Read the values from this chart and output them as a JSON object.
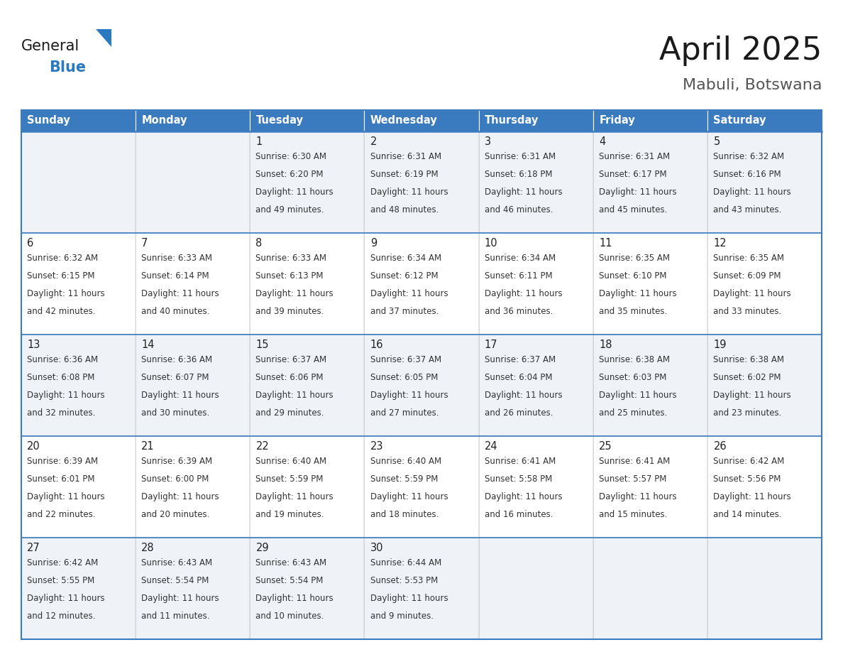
{
  "title": "April 2025",
  "subtitle": "Mabuli, Botswana",
  "header_bg": "#3a7abf",
  "header_text": "#ffffff",
  "row_bg_odd": "#eff3f7",
  "row_bg_even": "#ffffff",
  "border_color": "#3a7abf",
  "day_headers": [
    "Sunday",
    "Monday",
    "Tuesday",
    "Wednesday",
    "Thursday",
    "Friday",
    "Saturday"
  ],
  "days": [
    {
      "day": null,
      "sunrise": null,
      "sunset": null,
      "daylight_line1": null,
      "daylight_line2": null
    },
    {
      "day": null,
      "sunrise": null,
      "sunset": null,
      "daylight_line1": null,
      "daylight_line2": null
    },
    {
      "day": "1",
      "sunrise": "6:30 AM",
      "sunset": "6:20 PM",
      "daylight_line1": "11 hours",
      "daylight_line2": "and 49 minutes."
    },
    {
      "day": "2",
      "sunrise": "6:31 AM",
      "sunset": "6:19 PM",
      "daylight_line1": "11 hours",
      "daylight_line2": "and 48 minutes."
    },
    {
      "day": "3",
      "sunrise": "6:31 AM",
      "sunset": "6:18 PM",
      "daylight_line1": "11 hours",
      "daylight_line2": "and 46 minutes."
    },
    {
      "day": "4",
      "sunrise": "6:31 AM",
      "sunset": "6:17 PM",
      "daylight_line1": "11 hours",
      "daylight_line2": "and 45 minutes."
    },
    {
      "day": "5",
      "sunrise": "6:32 AM",
      "sunset": "6:16 PM",
      "daylight_line1": "11 hours",
      "daylight_line2": "and 43 minutes."
    },
    {
      "day": "6",
      "sunrise": "6:32 AM",
      "sunset": "6:15 PM",
      "daylight_line1": "11 hours",
      "daylight_line2": "and 42 minutes."
    },
    {
      "day": "7",
      "sunrise": "6:33 AM",
      "sunset": "6:14 PM",
      "daylight_line1": "11 hours",
      "daylight_line2": "and 40 minutes."
    },
    {
      "day": "8",
      "sunrise": "6:33 AM",
      "sunset": "6:13 PM",
      "daylight_line1": "11 hours",
      "daylight_line2": "and 39 minutes."
    },
    {
      "day": "9",
      "sunrise": "6:34 AM",
      "sunset": "6:12 PM",
      "daylight_line1": "11 hours",
      "daylight_line2": "and 37 minutes."
    },
    {
      "day": "10",
      "sunrise": "6:34 AM",
      "sunset": "6:11 PM",
      "daylight_line1": "11 hours",
      "daylight_line2": "and 36 minutes."
    },
    {
      "day": "11",
      "sunrise": "6:35 AM",
      "sunset": "6:10 PM",
      "daylight_line1": "11 hours",
      "daylight_line2": "and 35 minutes."
    },
    {
      "day": "12",
      "sunrise": "6:35 AM",
      "sunset": "6:09 PM",
      "daylight_line1": "11 hours",
      "daylight_line2": "and 33 minutes."
    },
    {
      "day": "13",
      "sunrise": "6:36 AM",
      "sunset": "6:08 PM",
      "daylight_line1": "11 hours",
      "daylight_line2": "and 32 minutes."
    },
    {
      "day": "14",
      "sunrise": "6:36 AM",
      "sunset": "6:07 PM",
      "daylight_line1": "11 hours",
      "daylight_line2": "and 30 minutes."
    },
    {
      "day": "15",
      "sunrise": "6:37 AM",
      "sunset": "6:06 PM",
      "daylight_line1": "11 hours",
      "daylight_line2": "and 29 minutes."
    },
    {
      "day": "16",
      "sunrise": "6:37 AM",
      "sunset": "6:05 PM",
      "daylight_line1": "11 hours",
      "daylight_line2": "and 27 minutes."
    },
    {
      "day": "17",
      "sunrise": "6:37 AM",
      "sunset": "6:04 PM",
      "daylight_line1": "11 hours",
      "daylight_line2": "and 26 minutes."
    },
    {
      "day": "18",
      "sunrise": "6:38 AM",
      "sunset": "6:03 PM",
      "daylight_line1": "11 hours",
      "daylight_line2": "and 25 minutes."
    },
    {
      "day": "19",
      "sunrise": "6:38 AM",
      "sunset": "6:02 PM",
      "daylight_line1": "11 hours",
      "daylight_line2": "and 23 minutes."
    },
    {
      "day": "20",
      "sunrise": "6:39 AM",
      "sunset": "6:01 PM",
      "daylight_line1": "11 hours",
      "daylight_line2": "and 22 minutes."
    },
    {
      "day": "21",
      "sunrise": "6:39 AM",
      "sunset": "6:00 PM",
      "daylight_line1": "11 hours",
      "daylight_line2": "and 20 minutes."
    },
    {
      "day": "22",
      "sunrise": "6:40 AM",
      "sunset": "5:59 PM",
      "daylight_line1": "11 hours",
      "daylight_line2": "and 19 minutes."
    },
    {
      "day": "23",
      "sunrise": "6:40 AM",
      "sunset": "5:59 PM",
      "daylight_line1": "11 hours",
      "daylight_line2": "and 18 minutes."
    },
    {
      "day": "24",
      "sunrise": "6:41 AM",
      "sunset": "5:58 PM",
      "daylight_line1": "11 hours",
      "daylight_line2": "and 16 minutes."
    },
    {
      "day": "25",
      "sunrise": "6:41 AM",
      "sunset": "5:57 PM",
      "daylight_line1": "11 hours",
      "daylight_line2": "and 15 minutes."
    },
    {
      "day": "26",
      "sunrise": "6:42 AM",
      "sunset": "5:56 PM",
      "daylight_line1": "11 hours",
      "daylight_line2": "and 14 minutes."
    },
    {
      "day": "27",
      "sunrise": "6:42 AM",
      "sunset": "5:55 PM",
      "daylight_line1": "11 hours",
      "daylight_line2": "and 12 minutes."
    },
    {
      "day": "28",
      "sunrise": "6:43 AM",
      "sunset": "5:54 PM",
      "daylight_line1": "11 hours",
      "daylight_line2": "and 11 minutes."
    },
    {
      "day": "29",
      "sunrise": "6:43 AM",
      "sunset": "5:54 PM",
      "daylight_line1": "11 hours",
      "daylight_line2": "and 10 minutes."
    },
    {
      "day": "30",
      "sunrise": "6:44 AM",
      "sunset": "5:53 PM",
      "daylight_line1": "11 hours",
      "daylight_line2": "and 9 minutes."
    },
    {
      "day": null,
      "sunrise": null,
      "sunset": null,
      "daylight_line1": null,
      "daylight_line2": null
    },
    {
      "day": null,
      "sunrise": null,
      "sunset": null,
      "daylight_line1": null,
      "daylight_line2": null
    },
    {
      "day": null,
      "sunrise": null,
      "sunset": null,
      "daylight_line1": null,
      "daylight_line2": null
    }
  ]
}
